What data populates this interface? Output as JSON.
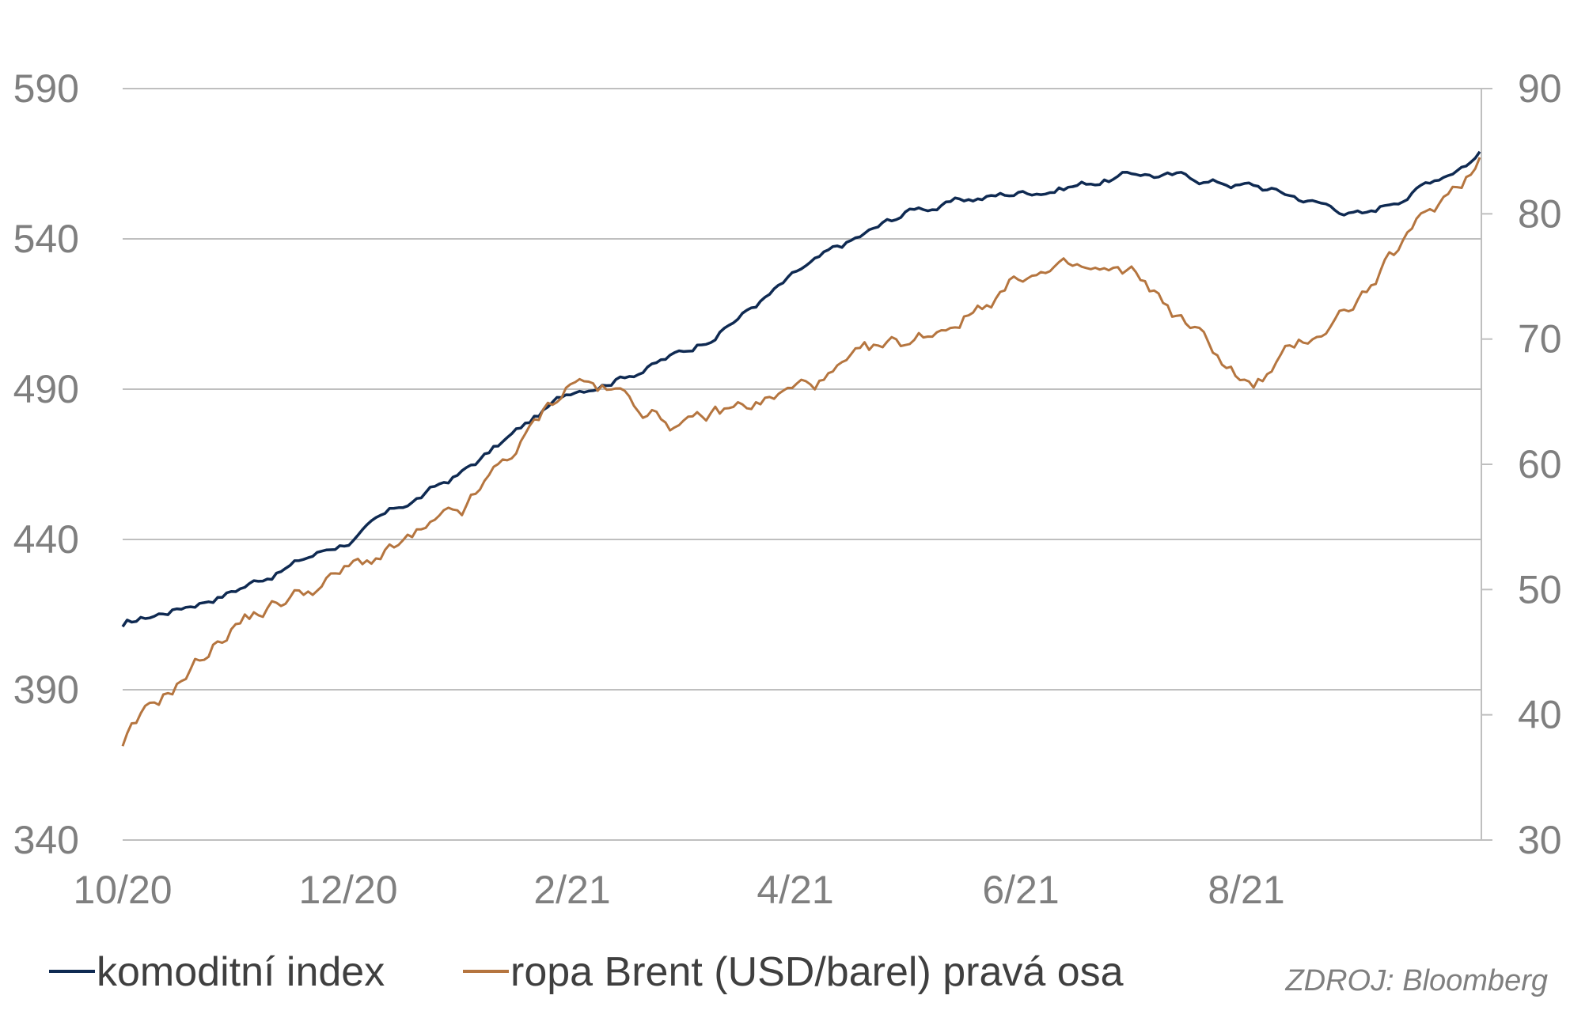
{
  "chart_data": {
    "type": "line",
    "x_ticks": [
      "10/20",
      "12/20",
      "2/21",
      "4/21",
      "6/21",
      "8/21"
    ],
    "y_left": {
      "range": [
        340,
        590
      ],
      "ticks": [
        340,
        390,
        440,
        490,
        540,
        590
      ]
    },
    "y_right": {
      "range": [
        30,
        90
      ],
      "ticks": [
        30,
        40,
        50,
        60,
        70,
        80,
        90
      ]
    },
    "grid": true,
    "legend_position": "bottom",
    "source": "ZDROJ: Bloomberg",
    "series": [
      {
        "name": "komoditní index",
        "axis": "left",
        "color": "#0f2a52",
        "x": [
          "10/20",
          "11/20",
          "12/20",
          "1/21",
          "2/21",
          "3/21",
          "4/21",
          "5/21",
          "6/21",
          "7/21",
          "8/21",
          "9/21",
          "10/21"
        ],
        "values": [
          411,
          424,
          440,
          462,
          490,
          503,
          529,
          550,
          556,
          562,
          558,
          548,
          569
        ]
      },
      {
        "name": "ropa Brent (USD/barel) pravá osa",
        "axis": "right",
        "color": "#b5753f",
        "x": [
          "10/20",
          "11/20",
          "12/20",
          "1/21",
          "2/21",
          "3/21",
          "4/21",
          "5/21",
          "6/21",
          "7/21",
          "8/21",
          "9/21",
          "10/21"
        ],
        "values": [
          37.5,
          47.5,
          51.5,
          55.5,
          67,
          63,
          66,
          69.5,
          75.5,
          74.5,
          66,
          74,
          84.5
        ]
      }
    ]
  }
}
